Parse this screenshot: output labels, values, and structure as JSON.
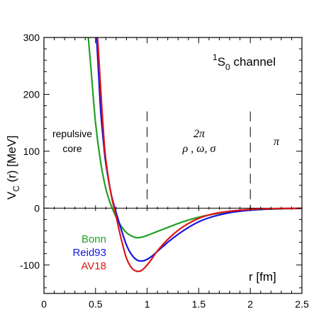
{
  "chart_data": {
    "type": "line",
    "title": "1S0 channel",
    "title_parts": {
      "sup": "1",
      "main": "S",
      "sub": "0",
      "rest": "channel"
    },
    "xlabel": "r [fm]",
    "ylabel": "V_C (r) [MeV]",
    "ylabel_parts": {
      "main": "V",
      "sub": "C",
      "rest": "(r) [MeV]"
    },
    "xlim": [
      0,
      2.5
    ],
    "ylim": [
      -150,
      300
    ],
    "x_ticks": [
      0,
      0.5,
      1,
      1.5,
      2,
      2.5
    ],
    "x_tick_labels": [
      "0",
      "0.5",
      "1",
      "1.5",
      "2",
      "2.5"
    ],
    "y_ticks": [
      -100,
      0,
      100,
      200,
      300
    ],
    "y_tick_labels": [
      "-100",
      "0",
      "100",
      "200",
      "300"
    ],
    "grid": false,
    "zero_line": true,
    "region_dividers_r": [
      1.0,
      2.0
    ],
    "annotations": {
      "core_line1": "repulsive",
      "core_line2": "core",
      "mid_line1": "2π",
      "mid_line2": "ρ , ω, σ",
      "outer": "π"
    },
    "legend_placement": "lower-left",
    "series": [
      {
        "name": "Bonn",
        "color": "#22a022",
        "x": [
          0.43,
          0.45,
          0.5,
          0.55,
          0.6,
          0.65,
          0.7,
          0.75,
          0.8,
          0.85,
          0.9,
          0.95,
          1.0,
          1.1,
          1.2,
          1.3,
          1.4,
          1.5,
          1.6,
          1.7,
          1.8,
          1.9,
          2.0,
          2.1,
          2.2,
          2.3,
          2.4,
          2.5
        ],
        "y": [
          300,
          258,
          150,
          80,
          34,
          5,
          -16,
          -32,
          -43,
          -49,
          -52,
          -51,
          -48,
          -41,
          -34,
          -27,
          -21,
          -16,
          -12,
          -9,
          -7,
          -5,
          -3.5,
          -2.5,
          -1.8,
          -1.2,
          -0.8,
          -0.5
        ]
      },
      {
        "name": "Reid93",
        "color": "#1515e0",
        "x": [
          0.51,
          0.53,
          0.55,
          0.58,
          0.6,
          0.65,
          0.7,
          0.75,
          0.8,
          0.85,
          0.9,
          0.95,
          1.0,
          1.05,
          1.1,
          1.2,
          1.3,
          1.4,
          1.5,
          1.6,
          1.7,
          1.8,
          1.9,
          2.0,
          2.1,
          2.2,
          2.3,
          2.4,
          2.5
        ],
        "y": [
          300,
          235,
          170,
          110,
          78,
          26,
          -8,
          -38,
          -65,
          -82,
          -91,
          -93,
          -90,
          -84,
          -76,
          -60,
          -46,
          -34,
          -24,
          -17,
          -12,
          -8,
          -5.5,
          -3.5,
          -2.2,
          -1.4,
          -0.9,
          -0.6,
          -0.3
        ]
      },
      {
        "name": "AV18",
        "color": "#e01515",
        "x": [
          0.52,
          0.54,
          0.56,
          0.58,
          0.6,
          0.65,
          0.7,
          0.75,
          0.8,
          0.85,
          0.9,
          0.95,
          1.0,
          1.05,
          1.1,
          1.2,
          1.3,
          1.4,
          1.5,
          1.6,
          1.7,
          1.8,
          1.9,
          2.0,
          2.1,
          2.2,
          2.3,
          2.4,
          2.5
        ],
        "y": [
          300,
          240,
          180,
          125,
          85,
          25,
          -15,
          -55,
          -88,
          -105,
          -111,
          -109,
          -100,
          -88,
          -75,
          -55,
          -39,
          -27,
          -18,
          -12,
          -8,
          -5.5,
          -3.5,
          -2.2,
          -1.4,
          -0.9,
          -0.6,
          -0.4,
          -0.2
        ]
      }
    ]
  }
}
